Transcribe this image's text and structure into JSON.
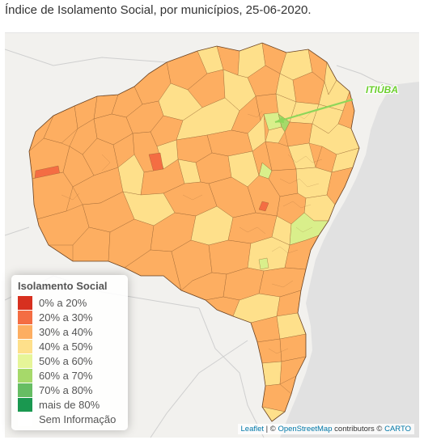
{
  "title": "Índice de Isolamento Social, por municípios, 25-06-2020.",
  "map": {
    "water_color": "#e6e6e6",
    "land_color": "#f2f1ee",
    "border_color": "#8c5a2e",
    "callout": {
      "label": "ITIÚBA",
      "color": "#8ed65a"
    }
  },
  "legend": {
    "title": "Isolamento Social",
    "items": [
      {
        "label": "0% a 20%",
        "color": "#d7301f"
      },
      {
        "label": "20% a 30%",
        "color": "#f46d43"
      },
      {
        "label": "30% a 40%",
        "color": "#fdae61"
      },
      {
        "label": "40% a 50%",
        "color": "#fee08b"
      },
      {
        "label": "50% a 60%",
        "color": "#e6f598"
      },
      {
        "label": "60% a 70%",
        "color": "#a6d96a"
      },
      {
        "label": "70% a 80%",
        "color": "#66bd63"
      },
      {
        "label": "mais de 80%",
        "color": "#1a9850"
      },
      {
        "label": "Sem Informação",
        "color": "#ffffff"
      }
    ]
  },
  "attribution": {
    "leaflet": "Leaflet",
    "sep1": " | © ",
    "osm": "OpenStreetMap",
    "contributors": " contributors © ",
    "carto": "CARTO"
  }
}
